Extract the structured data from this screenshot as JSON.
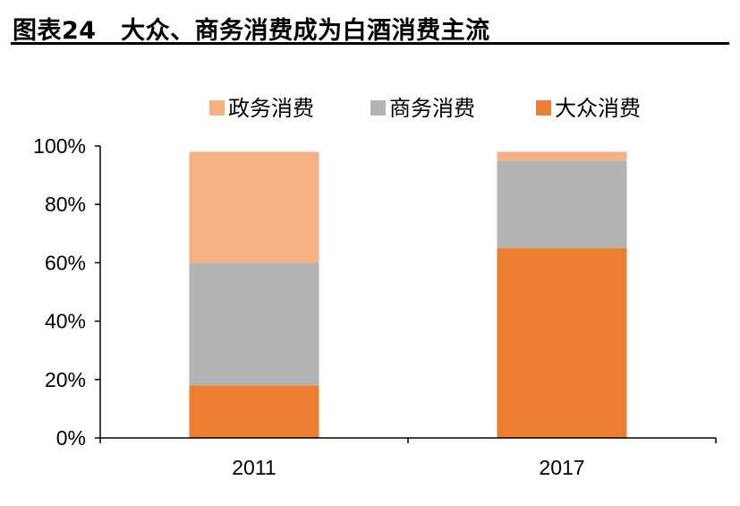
{
  "figure": {
    "title": "图表24　大众、商务消费成为白酒消费主流"
  },
  "colors": {
    "政务消费": "#f4b183",
    "商务消费": "#b3b3b3",
    "大众消费": "#ed7d31",
    "axis": "#000000"
  },
  "chart_data": {
    "type": "bar",
    "stacked": true,
    "categories": [
      "2011",
      "2017"
    ],
    "series": [
      {
        "name": "大众消费",
        "values": [
          18,
          65
        ]
      },
      {
        "name": "商务消费",
        "values": [
          42,
          30
        ]
      },
      {
        "name": "政务消费",
        "values": [
          38,
          3
        ]
      }
    ],
    "legend": [
      "政务消费",
      "商务消费",
      "大众消费"
    ],
    "legend_position": "top",
    "ylim": [
      0,
      100
    ],
    "yticks": [
      "0%",
      "20%",
      "40%",
      "60%",
      "80%",
      "100%"
    ],
    "grid": false
  }
}
